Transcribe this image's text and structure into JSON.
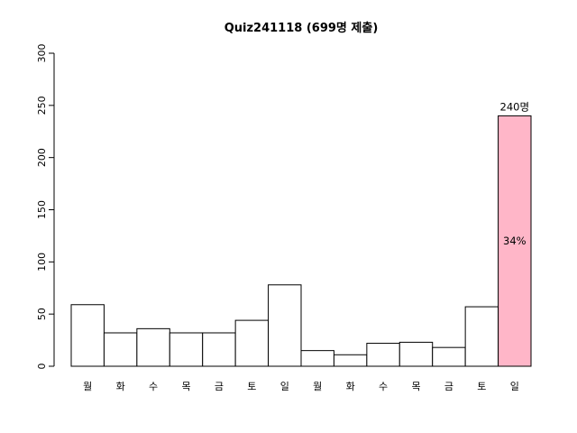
{
  "chart_data": {
    "type": "bar",
    "title": "Quiz241118 (699명 제출)",
    "xlabel": "",
    "ylabel": "",
    "categories": [
      "월",
      "화",
      "수",
      "목",
      "금",
      "토",
      "일",
      "월",
      "화",
      "수",
      "목",
      "금",
      "토",
      "일"
    ],
    "values": [
      59,
      32,
      36,
      32,
      32,
      44,
      78,
      15,
      11,
      22,
      23,
      18,
      57,
      240
    ],
    "ylim": [
      0,
      300
    ],
    "yticks": [
      "0",
      "50",
      "100",
      "150",
      "200",
      "250",
      "300"
    ],
    "highlight": {
      "index": 13,
      "color": "#ffb6c8",
      "top_label": "240명",
      "inner_label": "34%"
    },
    "bar_color": "#ffffff",
    "grid": false,
    "legend": "none"
  }
}
